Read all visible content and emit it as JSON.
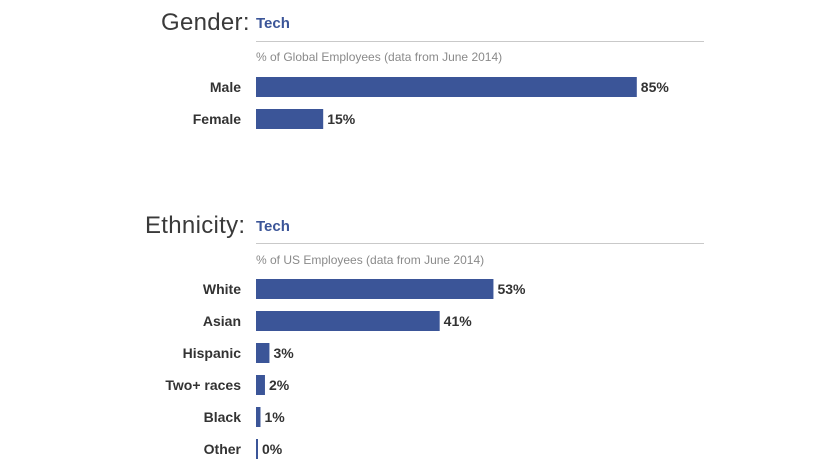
{
  "chart_data": [
    {
      "type": "bar",
      "orientation": "horizontal",
      "title": "Gender:",
      "subtitle": "Tech",
      "caption": "% of Global Employees (data from June 2014)",
      "categories": [
        "Male",
        "Female"
      ],
      "values": [
        85,
        15
      ],
      "value_labels": [
        "85%",
        "15%"
      ],
      "xlim": [
        0,
        100
      ],
      "grid": false,
      "bar_color": "#3b5598"
    },
    {
      "type": "bar",
      "orientation": "horizontal",
      "title": "Ethnicity:",
      "subtitle": "Tech",
      "caption": "% of US Employees (data from June 2014)",
      "categories": [
        "White",
        "Asian",
        "Hispanic",
        "Two+ races",
        "Black",
        "Other"
      ],
      "values": [
        53,
        41,
        3,
        2,
        1,
        0
      ],
      "value_labels": [
        "53%",
        "41%",
        "3%",
        "2%",
        "1%",
        "0%"
      ],
      "xlim": [
        0,
        100
      ],
      "grid": false,
      "bar_color": "#3b5598"
    }
  ]
}
